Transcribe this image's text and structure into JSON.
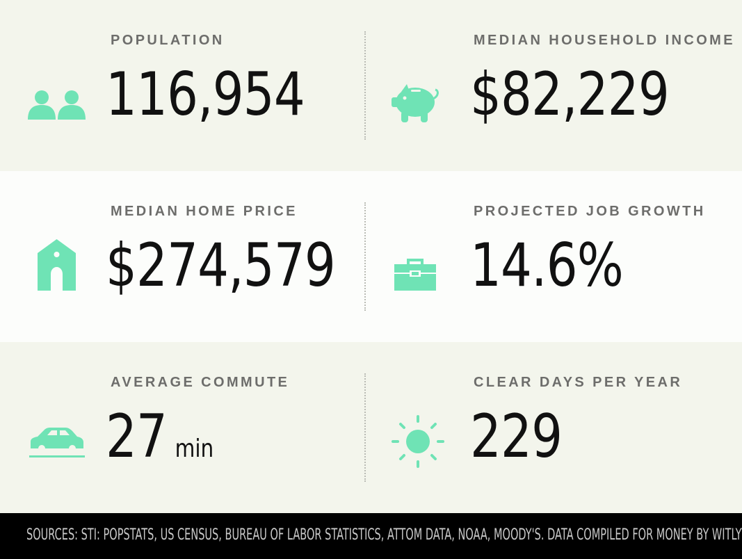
{
  "colors": {
    "accent": "#6fe3b5",
    "text": "#111111",
    "label": "#6d6d6b"
  },
  "stats": {
    "population": {
      "label": "POPULATION",
      "value": "116,954",
      "icon": "people-icon"
    },
    "income": {
      "label": "MEDIAN HOUSEHOLD INCOME",
      "value": "$82,229",
      "icon": "piggy-bank-icon"
    },
    "home_price": {
      "label": "MEDIAN HOME PRICE",
      "value": "$274,579",
      "icon": "house-icon"
    },
    "job_growth": {
      "label": "PROJECTED JOB GROWTH",
      "value": "14.6%",
      "icon": "briefcase-icon"
    },
    "commute": {
      "label": "AVERAGE COMMUTE",
      "value": "27",
      "unit": "min",
      "icon": "car-icon"
    },
    "clear_days": {
      "label": "CLEAR DAYS PER YEAR",
      "value": "229",
      "icon": "sun-icon"
    }
  },
  "footer": {
    "sources": "SOURCES: STI: POPSTATS, US CENSUS, BUREAU OF LABOR STATISTICS, ATTOM DATA, NOAA, MOODY'S. DATA COMPILED FOR MONEY BY WITLYTIC."
  }
}
